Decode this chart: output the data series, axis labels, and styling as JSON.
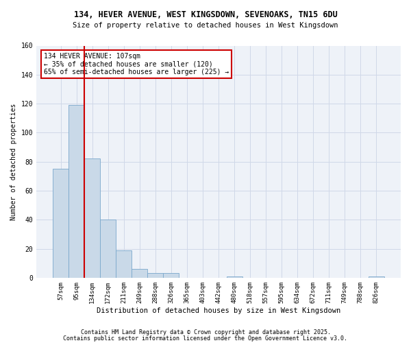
{
  "title1": "134, HEVER AVENUE, WEST KINGSDOWN, SEVENOAKS, TN15 6DU",
  "title2": "Size of property relative to detached houses in West Kingsdown",
  "xlabel": "Distribution of detached houses by size in West Kingsdown",
  "ylabel": "Number of detached properties",
  "categories": [
    "57sqm",
    "95sqm",
    "134sqm",
    "172sqm",
    "211sqm",
    "249sqm",
    "288sqm",
    "326sqm",
    "365sqm",
    "403sqm",
    "442sqm",
    "480sqm",
    "518sqm",
    "557sqm",
    "595sqm",
    "634sqm",
    "672sqm",
    "711sqm",
    "749sqm",
    "788sqm",
    "826sqm"
  ],
  "values": [
    75,
    119,
    82,
    40,
    19,
    6,
    3,
    3,
    0,
    0,
    0,
    1,
    0,
    0,
    0,
    0,
    0,
    0,
    0,
    0,
    1
  ],
  "bar_color": "#c9d9e8",
  "bar_edge_color": "#7aa8cc",
  "grid_color": "#d0d8e8",
  "bg_color": "#eef2f8",
  "annotation_text": "134 HEVER AVENUE: 107sqm\n← 35% of detached houses are smaller (120)\n65% of semi-detached houses are larger (225) →",
  "annotation_box_color": "#ffffff",
  "annotation_box_edge": "#cc0000",
  "red_line_color": "#cc0000",
  "footer1": "Contains HM Land Registry data © Crown copyright and database right 2025.",
  "footer2": "Contains public sector information licensed under the Open Government Licence v3.0.",
  "ylim": [
    0,
    160
  ],
  "yticks": [
    0,
    20,
    40,
    60,
    80,
    100,
    120,
    140,
    160
  ]
}
